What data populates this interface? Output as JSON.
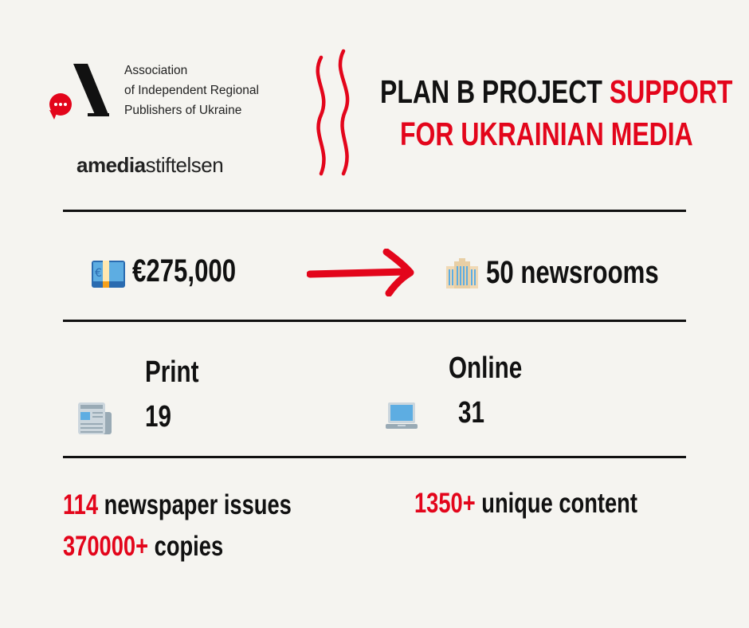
{
  "logos": {
    "association": {
      "lines": [
        "Association",
        "of Independent Regional",
        "Publishers of Ukraine"
      ],
      "accent_color": "#e3051b"
    },
    "amedia": {
      "text_bold": "amedia",
      "text_light": "stiftelsen"
    }
  },
  "headline": {
    "part_black": "PLAN B PROJECT",
    "part_red_1": "SUPPORT",
    "part_red_2": "FOR UKRAINIAN MEDIA"
  },
  "funding": {
    "amount": "€275,000",
    "amount_icon": "euro-banknote-icon",
    "arrow_icon": "arrow-right-icon",
    "newsrooms_icon": "office-building-icon",
    "newsrooms": "50 newsrooms"
  },
  "split": {
    "print": {
      "label": "Print",
      "count": "19",
      "icon": "newspaper-icon"
    },
    "online": {
      "label": "Online",
      "count": "31",
      "icon": "laptop-icon"
    }
  },
  "stats": {
    "issues_num": "114",
    "issues_label": "newspaper issues",
    "copies_num": "370000+",
    "copies_label": "copies",
    "content_num": "1350+",
    "content_label": "unique content"
  },
  "colors": {
    "accent": "#e3051b",
    "background": "#f5f4f0",
    "text": "#111111"
  }
}
